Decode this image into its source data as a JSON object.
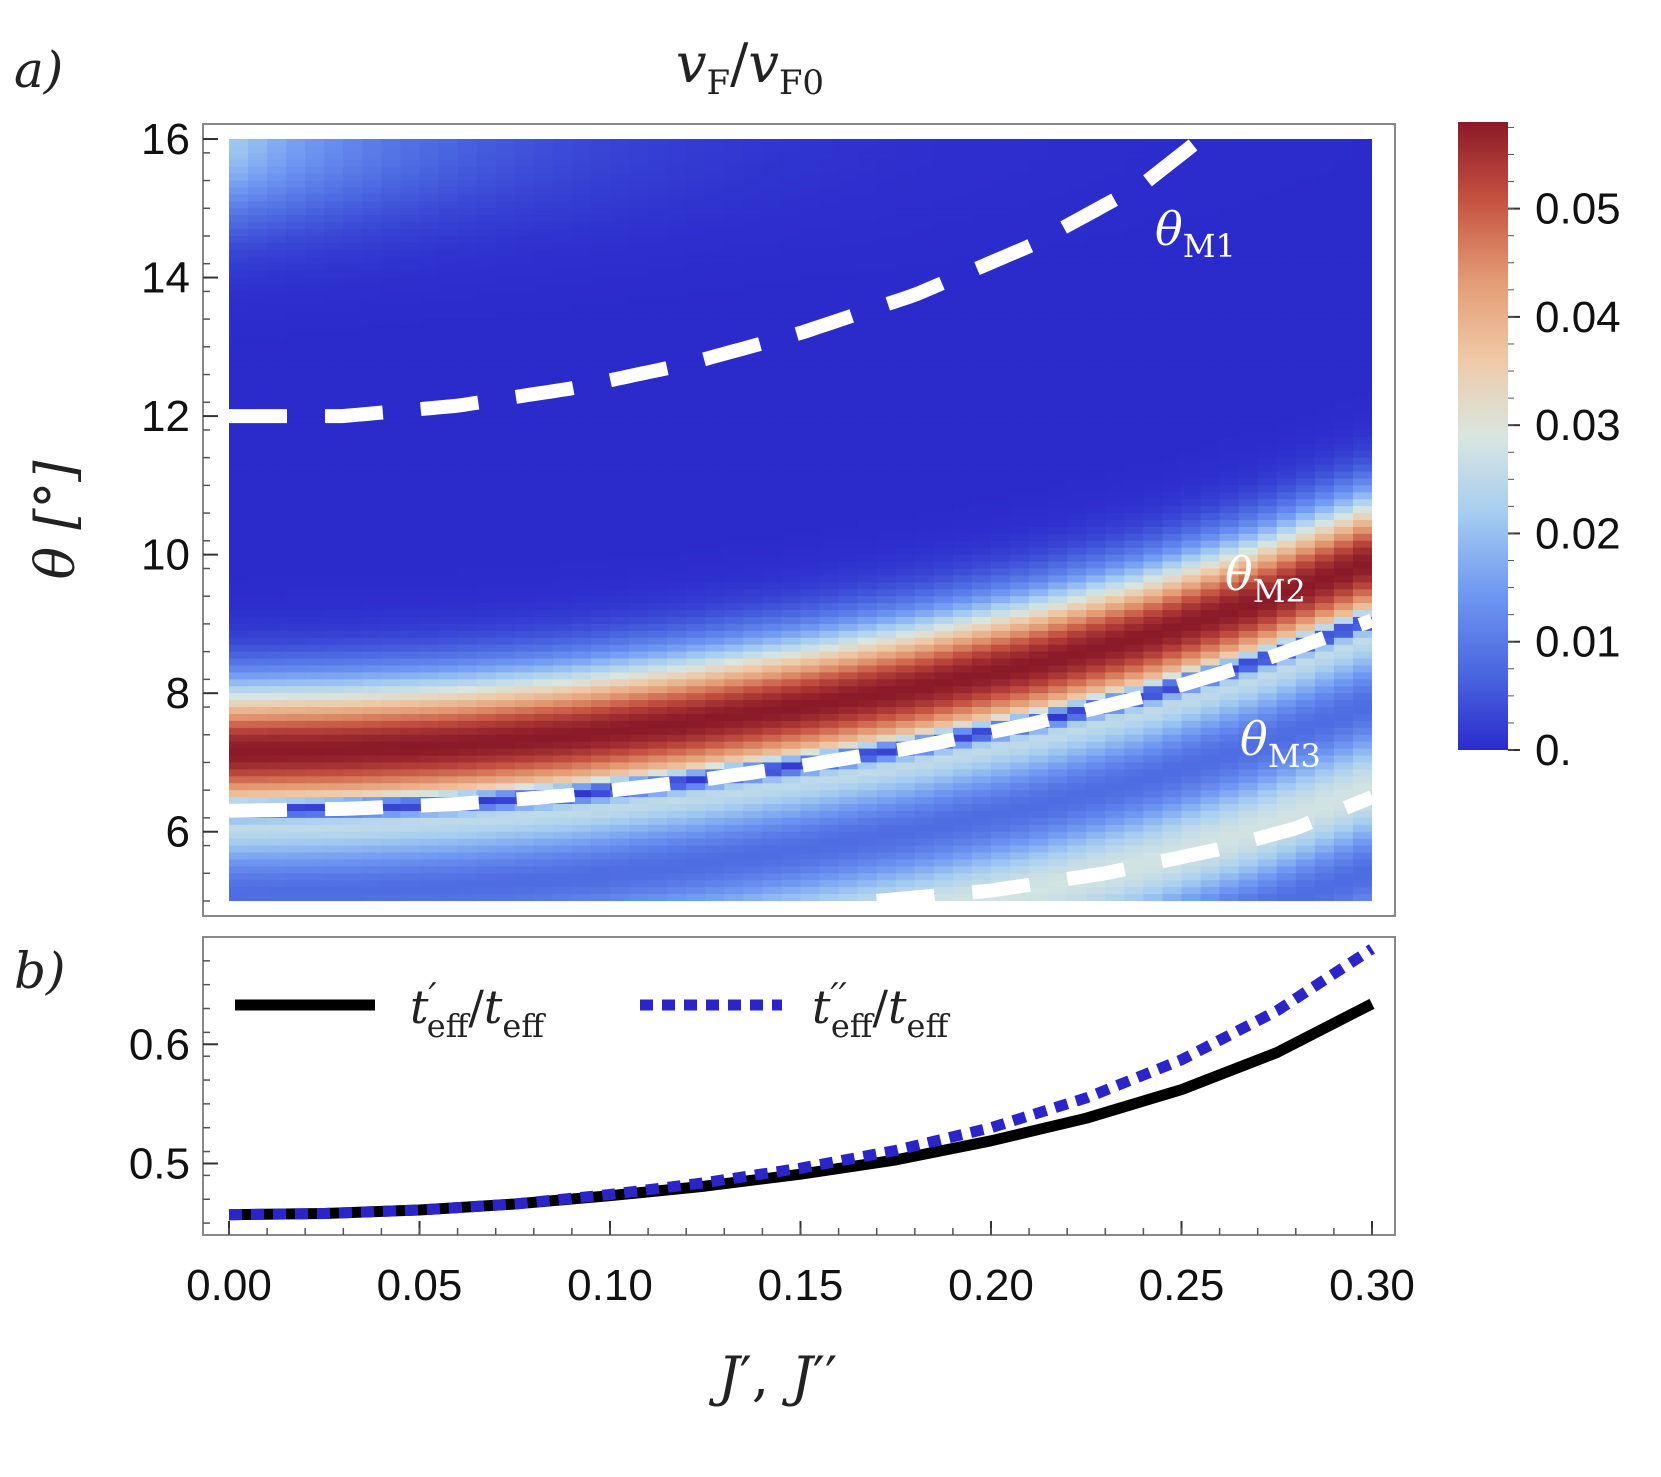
{
  "chart_data": [
    {
      "panel": "a)",
      "type": "heatmap",
      "title": "v_F / v_F0",
      "xlabel": "J′, J′′",
      "ylabel": "θ [°]",
      "xlim": [
        0.0,
        0.3
      ],
      "ylim": [
        5.0,
        16.0
      ],
      "y_ticks": [
        "6",
        "8",
        "10",
        "12",
        "14",
        "16"
      ],
      "y_tick_values": [
        6,
        8,
        10,
        12,
        14,
        16
      ],
      "colorbar": {
        "range": [
          0.0,
          0.058
        ],
        "ticks": [
          "0.",
          "0.01",
          "0.02",
          "0.03",
          "0.04",
          "0.05"
        ],
        "tick_values": [
          0.0,
          0.01,
          0.02,
          0.03,
          0.04,
          0.05
        ],
        "colormap": "coolwarm"
      },
      "series": [
        {
          "name": "θ_M1",
          "style": "dashed-white",
          "x": [
            0.0,
            0.03,
            0.06,
            0.09,
            0.12,
            0.15,
            0.18,
            0.21,
            0.24,
            0.255
          ],
          "y": [
            12.0,
            12.0,
            12.15,
            12.4,
            12.75,
            13.2,
            13.75,
            14.45,
            15.35,
            16.0
          ]
        },
        {
          "name": "θ_M2",
          "style": "dashed-white",
          "x": [
            0.0,
            0.03,
            0.06,
            0.09,
            0.12,
            0.15,
            0.18,
            0.21,
            0.24,
            0.27,
            0.3
          ],
          "y": [
            6.3,
            6.33,
            6.4,
            6.53,
            6.72,
            6.95,
            7.22,
            7.55,
            7.95,
            8.45,
            9.05
          ]
        },
        {
          "name": "θ_M3",
          "style": "dashed-white",
          "x": [
            0.17,
            0.2,
            0.23,
            0.26,
            0.28,
            0.3
          ],
          "y": [
            5.0,
            5.15,
            5.4,
            5.75,
            6.05,
            6.5
          ]
        }
      ],
      "annotations": [
        {
          "text": "θ",
          "sub": "M1"
        },
        {
          "text": "θ",
          "sub": "M2"
        },
        {
          "text": "θ",
          "sub": "M3"
        }
      ],
      "title_parts": {
        "v1": "v",
        "s1": "F",
        "slash": "/",
        "v2": "v",
        "s2": "F0"
      }
    },
    {
      "panel": "b)",
      "type": "line",
      "xlabel": "J′, J′′",
      "xlim": [
        0.0,
        0.3
      ],
      "ylim": [
        0.44,
        0.69
      ],
      "x_ticks": [
        "0.00",
        "0.05",
        "0.10",
        "0.15",
        "0.20",
        "0.25",
        "0.30"
      ],
      "x_tick_values": [
        0.0,
        0.05,
        0.1,
        0.15,
        0.2,
        0.25,
        0.3
      ],
      "y_ticks": [
        "0.5",
        "0.6"
      ],
      "y_tick_values": [
        0.5,
        0.6
      ],
      "x": [
        0.0,
        0.025,
        0.05,
        0.075,
        0.1,
        0.125,
        0.15,
        0.175,
        0.2,
        0.225,
        0.25,
        0.275,
        0.3
      ],
      "series": [
        {
          "name": "t′_eff / t_eff",
          "color": "#000000",
          "style": "solid",
          "values": [
            0.457,
            0.458,
            0.461,
            0.466,
            0.473,
            0.481,
            0.491,
            0.503,
            0.519,
            0.538,
            0.562,
            0.593,
            0.634
          ]
        },
        {
          "name": "t′′_eff / t_eff",
          "color": "#2b25c9",
          "style": "dotted",
          "values": [
            0.457,
            0.458,
            0.461,
            0.466,
            0.474,
            0.484,
            0.496,
            0.511,
            0.53,
            0.555,
            0.587,
            0.628,
            0.68
          ]
        }
      ],
      "legend": [
        {
          "t": "t",
          "prime": "′",
          "sub": "eff",
          "den": "t",
          "den_sub": "eff"
        },
        {
          "t": "t",
          "prime": "′′",
          "sub": "eff",
          "den": "t",
          "den_sub": "eff"
        }
      ],
      "xlabel_parts": {
        "a": "J",
        "pa": "′",
        "comma": ",",
        "b": "J",
        "pb": "′′"
      }
    }
  ],
  "colors": {
    "frame": "#888888",
    "dash": "#ffffff",
    "black_line": "#000000",
    "blue_line": "#2b25c9"
  }
}
